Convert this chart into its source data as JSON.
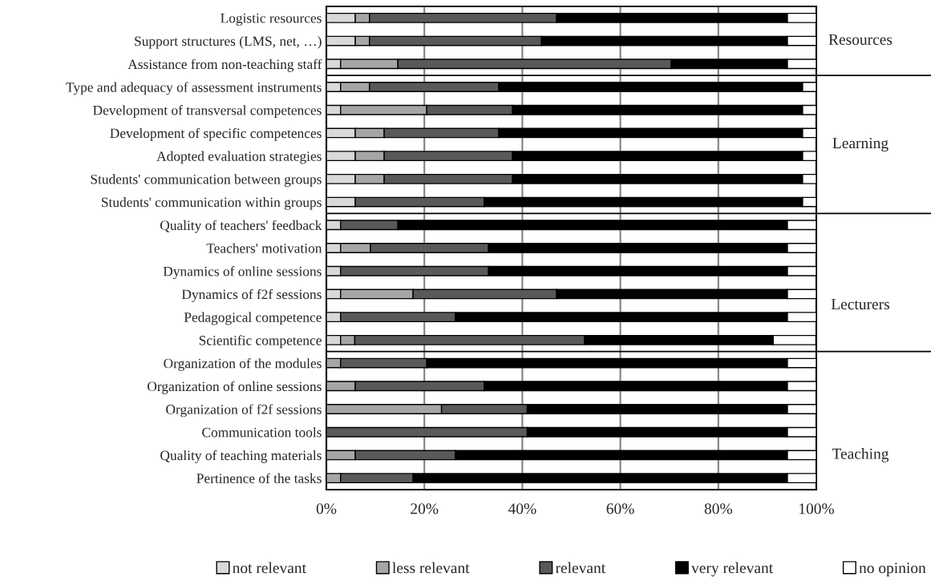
{
  "chart_data": {
    "type": "bar",
    "orientation": "horizontal",
    "stacked": true,
    "categories": [
      "Logistic resources",
      "Support structures (LMS, net, …)",
      "Assistance from non-teaching staff",
      "Type and adequacy of assessment instruments",
      "Development of transversal competences",
      "Development of specific competences",
      "Adopted evaluation strategies",
      "Students' communication between groups",
      "Students' communication within groups",
      "Quality of teachers' feedback",
      "Teachers' motivation",
      "Dynamics of online sessions",
      "Dynamics of f2f sessions",
      "Pedagogical competence",
      "Scientific competence",
      "Organization of the modules",
      "Organization of online sessions",
      "Organization of f2f sessions",
      "Communication tools",
      "Quality of teaching materials",
      "Pertinence of the tasks"
    ],
    "series": [
      {
        "name": "not relevant",
        "color": "#d9d9d9",
        "values": [
          5.9,
          5.9,
          2.9,
          2.9,
          2.9,
          5.9,
          5.9,
          5.9,
          5.9,
          2.9,
          2.9,
          2.9,
          2.9,
          2.9,
          2.9,
          0,
          0,
          0,
          0,
          0,
          0
        ]
      },
      {
        "name": "less relevant",
        "color": "#a6a6a6",
        "values": [
          2.9,
          2.9,
          11.7,
          5.9,
          17.6,
          5.9,
          5.9,
          5.9,
          0,
          0,
          6.1,
          0,
          14.8,
          0,
          2.9,
          2.9,
          5.9,
          23.5,
          0,
          5.9,
          2.9
        ]
      },
      {
        "name": "relevant",
        "color": "#595959",
        "values": [
          38.2,
          35.1,
          55.8,
          26.4,
          17.5,
          23.4,
          26.2,
          26.2,
          26.3,
          11.7,
          24.1,
          30.2,
          29.3,
          23.4,
          46.9,
          17.6,
          26.3,
          17.5,
          41.0,
          20.4,
          14.8
        ]
      },
      {
        "name": "very relevant",
        "color": "#000000",
        "values": [
          47.1,
          50.2,
          23.7,
          62.0,
          59.2,
          62.0,
          59.2,
          59.2,
          65.0,
          79.5,
          61.0,
          61.0,
          47.1,
          67.8,
          38.5,
          73.6,
          61.9,
          53.1,
          53.1,
          67.8,
          76.4
        ]
      },
      {
        "name": "no opinion",
        "color": "#ffffff",
        "values": [
          5.9,
          5.9,
          5.9,
          2.8,
          2.8,
          2.8,
          2.8,
          2.8,
          2.8,
          5.9,
          5.9,
          5.9,
          5.9,
          5.9,
          8.7,
          5.9,
          5.9,
          5.9,
          5.9,
          5.9,
          5.9
        ]
      }
    ],
    "xlim": [
      0,
      100
    ],
    "xticks": [
      {
        "value": 0,
        "label": "0%"
      },
      {
        "value": 20,
        "label": "20%"
      },
      {
        "value": 40,
        "label": "40%"
      },
      {
        "value": 60,
        "label": "60%"
      },
      {
        "value": 80,
        "label": "80%"
      },
      {
        "value": 100,
        "label": "100%"
      }
    ],
    "annotations": [
      "Resources",
      "Learning",
      "Lecturers",
      "Teaching"
    ],
    "grid": "x",
    "legend": "bottom"
  }
}
